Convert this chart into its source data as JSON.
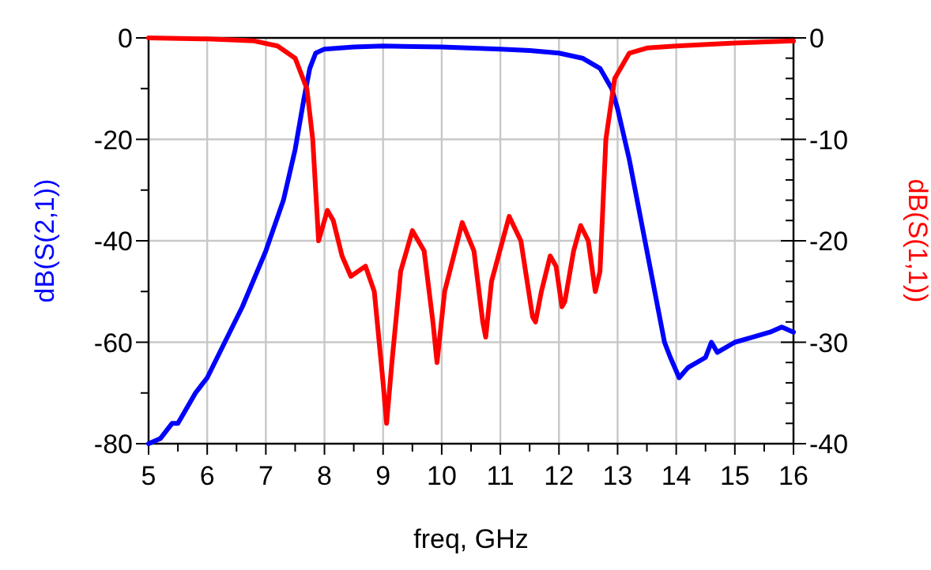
{
  "chart_data": {
    "type": "line",
    "xlabel": "freq, GHz",
    "ylabel": "dB(S(2,1))",
    "y2label": "dB(S(1,1))",
    "xlim": [
      5,
      16
    ],
    "xticks": [
      5,
      {
        "value": 5.5,
        "label": null
      },
      6,
      {
        "value": 6.5,
        "label": null
      },
      7,
      {
        "value": 7.5,
        "label": null
      },
      8,
      {
        "value": 8.5,
        "label": null
      },
      9,
      {
        "value": 9.5,
        "label": null
      },
      10,
      {
        "value": 10.5,
        "label": null
      },
      11,
      {
        "value": 11.5,
        "label": null
      },
      12,
      {
        "value": 12.5,
        "label": null
      },
      13,
      {
        "value": 13.5,
        "label": null
      },
      14,
      {
        "value": 14.5,
        "label": null
      },
      15,
      {
        "value": 15.5,
        "label": null
      },
      16
    ],
    "ylim": [
      -80,
      0
    ],
    "yticks": [
      -80,
      {
        "value": -70,
        "label": null
      },
      -60,
      {
        "value": -50,
        "label": null
      },
      -40,
      {
        "value": -30,
        "label": null
      },
      -20,
      {
        "value": -10,
        "label": null
      },
      0
    ],
    "y2lim": [
      -40,
      0
    ],
    "y2ticks": [
      -40,
      {
        "value": -38,
        "label": null
      },
      {
        "value": -36,
        "label": null
      },
      {
        "value": -34,
        "label": null
      },
      {
        "value": -32,
        "label": null
      },
      -30,
      {
        "value": -28,
        "label": null
      },
      {
        "value": -26,
        "label": null
      },
      {
        "value": -24,
        "label": null
      },
      {
        "value": -22,
        "label": null
      },
      -20,
      {
        "value": -18,
        "label": null
      },
      {
        "value": -16,
        "label": null
      },
      {
        "value": -14,
        "label": null
      },
      {
        "value": -12,
        "label": null
      },
      -10,
      {
        "value": -8,
        "label": null
      },
      {
        "value": -6,
        "label": null
      },
      {
        "value": -4,
        "label": null
      },
      {
        "value": -2,
        "label": null
      },
      0
    ],
    "grid": true,
    "marker": "none",
    "line_style": "solid",
    "series": [
      {
        "color": "#0000ff",
        "x": [
          5,
          5.2,
          5.4,
          5.5,
          5.6,
          5.8,
          6,
          6.3,
          6.6,
          7,
          7.3,
          7.5,
          7.65,
          7.75,
          7.85,
          8,
          8.5,
          9,
          10,
          11,
          11.5,
          12,
          12.4,
          12.7,
          12.9,
          13,
          13.2,
          13.4,
          13.6,
          13.8,
          13.9,
          14.05,
          14.2,
          14.5,
          14.6,
          14.7,
          15,
          15.3,
          15.6,
          15.8,
          16
        ],
        "values": [
          -80,
          -79,
          -76,
          -76,
          -74,
          -70,
          -67,
          -60,
          -53,
          -42,
          -32,
          -22,
          -12,
          -6,
          -3,
          -2.2,
          -1.8,
          -1.6,
          -1.8,
          -2.2,
          -2.5,
          -3,
          -4,
          -6,
          -10,
          -14,
          -24,
          -36,
          -48,
          -60,
          -63,
          -67,
          -65,
          -63,
          -60,
          -62,
          -60,
          -59,
          -58,
          -57,
          -58
        ]
      },
      {
        "color": "#ff0000",
        "axis": "y2",
        "x": [
          5,
          6,
          6.8,
          7.2,
          7.5,
          7.7,
          7.8,
          7.85,
          7.9,
          8.05,
          8.15,
          8.3,
          8.45,
          8.7,
          8.85,
          9,
          9.06,
          9.15,
          9.3,
          9.5,
          9.7,
          9.85,
          9.92,
          10.05,
          10.35,
          10.55,
          10.7,
          10.75,
          10.85,
          11.15,
          11.35,
          11.55,
          11.6,
          11.7,
          11.85,
          11.95,
          12.05,
          12.1,
          12.25,
          12.37,
          12.5,
          12.62,
          12.7,
          12.8,
          12.95,
          13.2,
          13.5,
          14,
          15,
          16
        ],
        "values": [
          0,
          -0.1,
          -0.3,
          -0.8,
          -2,
          -5,
          -10,
          -15,
          -20,
          -17,
          -18,
          -21.5,
          -23.5,
          -22.5,
          -25,
          -34,
          -38,
          -32,
          -23,
          -19,
          -21,
          -28,
          -32,
          -25,
          -18.2,
          -21,
          -28,
          -29.5,
          -24,
          -17.6,
          -20,
          -27.5,
          -28,
          -25,
          -21.5,
          -22.5,
          -26.5,
          -26,
          -21,
          -18.5,
          -20,
          -25,
          -23,
          -10,
          -4,
          -1.5,
          -1,
          -0.8,
          -0.5,
          -0.3
        ]
      }
    ]
  }
}
